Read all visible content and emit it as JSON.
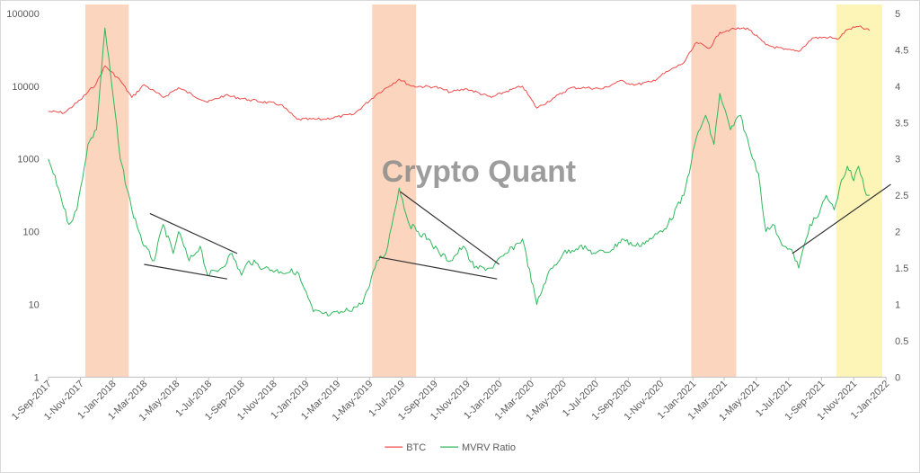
{
  "chart_data": {
    "type": "line",
    "watermark": "Crypto Quant",
    "x_tick_labels": [
      "1-Sep-2017",
      "1-Nov-2017",
      "1-Jan-2018",
      "1-Mar-2018",
      "1-May-2018",
      "1-Jul-2018",
      "1-Sep-2018",
      "1-Nov-2018",
      "1-Jan-2019",
      "1-Mar-2019",
      "1-May-2019",
      "1-Jul-2019",
      "1-Sep-2019",
      "1-Nov-2019",
      "1-Jan-2020",
      "1-Mar-2020",
      "1-May-2020",
      "1-Jul-2020",
      "1-Sep-2020",
      "1-Nov-2020",
      "1-Jan-2021",
      "1-Mar-2021",
      "1-May-2021",
      "1-Jul-2021",
      "1-Sep-2021",
      "1-Nov-2021",
      "1-Jan-2022"
    ],
    "y_left": {
      "scale": "log",
      "ticks": [
        "1",
        "10",
        "100",
        "1000",
        "10000",
        "100000"
      ],
      "range": [
        1,
        100000
      ]
    },
    "y_right": {
      "scale": "linear",
      "ticks": [
        "0",
        "0.5",
        "1",
        "1.5",
        "2",
        "2.5",
        "3",
        "3.5",
        "4",
        "4.5",
        "5"
      ],
      "range": [
        0,
        5
      ]
    },
    "legend_position": "bottom",
    "grid": false,
    "colors": {
      "btc": "#f04b4b",
      "mvrv": "#2eb85c",
      "shade_orange": "#fbd5bd",
      "shade_yellow": "#fdf5b8",
      "trendline": "#333333"
    },
    "series": [
      {
        "name": "BTC",
        "axis": "left",
        "x": [
          "2017-09-01",
          "2017-10-01",
          "2017-11-01",
          "2017-12-01",
          "2017-12-17",
          "2018-01-15",
          "2018-02-06",
          "2018-03-01",
          "2018-04-06",
          "2018-05-05",
          "2018-06-29",
          "2018-08-01",
          "2018-09-15",
          "2018-11-14",
          "2018-12-15",
          "2019-02-01",
          "2019-04-01",
          "2019-05-15",
          "2019-06-26",
          "2019-07-20",
          "2019-09-01",
          "2019-10-01",
          "2019-11-01",
          "2019-12-17",
          "2020-01-15",
          "2020-02-14",
          "2020-03-12",
          "2020-04-15",
          "2020-05-15",
          "2020-06-15",
          "2020-07-15",
          "2020-08-15",
          "2020-09-15",
          "2020-10-15",
          "2020-11-15",
          "2020-12-15",
          "2021-01-08",
          "2021-02-01",
          "2021-02-21",
          "2021-03-13",
          "2021-04-14",
          "2021-05-19",
          "2021-06-22",
          "2021-07-20",
          "2021-08-15",
          "2021-09-15",
          "2021-10-01",
          "2021-10-20",
          "2021-11-10",
          "2021-12-01"
        ],
        "values": [
          4500,
          4300,
          6500,
          11000,
          19000,
          12000,
          7000,
          10500,
          7000,
          9500,
          6000,
          7500,
          6500,
          5600,
          3500,
          3500,
          4100,
          7800,
          12500,
          10000,
          9800,
          8300,
          9200,
          7000,
          8500,
          10000,
          5000,
          7000,
          9500,
          9500,
          9200,
          11800,
          10500,
          11500,
          16000,
          21000,
          40000,
          33000,
          55000,
          60000,
          63000,
          37000,
          32000,
          30000,
          46000,
          47000,
          44000,
          60000,
          66000,
          58000
        ]
      },
      {
        "name": "MVRV Ratio",
        "axis": "right",
        "x": [
          "2017-09-01",
          "2017-09-20",
          "2017-10-10",
          "2017-10-25",
          "2017-11-15",
          "2017-12-01",
          "2017-12-17",
          "2018-01-01",
          "2018-01-15",
          "2018-02-06",
          "2018-03-01",
          "2018-03-20",
          "2018-04-06",
          "2018-04-25",
          "2018-05-05",
          "2018-05-25",
          "2018-06-15",
          "2018-06-29",
          "2018-07-25",
          "2018-08-14",
          "2018-09-01",
          "2018-09-15",
          "2018-10-15",
          "2018-11-14",
          "2018-12-15",
          "2019-01-15",
          "2019-02-15",
          "2019-03-15",
          "2019-04-15",
          "2019-05-01",
          "2019-05-15",
          "2019-06-01",
          "2019-06-26",
          "2019-07-15",
          "2019-08-01",
          "2019-08-20",
          "2019-09-10",
          "2019-10-01",
          "2019-10-25",
          "2019-11-15",
          "2019-12-17",
          "2020-01-15",
          "2020-02-14",
          "2020-03-12",
          "2020-04-01",
          "2020-05-01",
          "2020-06-01",
          "2020-07-01",
          "2020-08-01",
          "2020-08-20",
          "2020-09-15",
          "2020-10-15",
          "2020-11-15",
          "2020-12-15",
          "2021-01-08",
          "2021-01-25",
          "2021-02-10",
          "2021-02-21",
          "2021-03-13",
          "2021-04-01",
          "2021-04-20",
          "2021-05-05",
          "2021-05-19",
          "2021-06-01",
          "2021-06-22",
          "2021-07-10",
          "2021-07-20",
          "2021-08-10",
          "2021-08-25",
          "2021-09-10",
          "2021-09-25",
          "2021-10-05",
          "2021-10-20",
          "2021-11-01",
          "2021-11-10",
          "2021-11-25",
          "2021-12-01"
        ],
        "values": [
          3.0,
          2.6,
          2.1,
          2.3,
          3.2,
          3.4,
          4.8,
          3.9,
          3.0,
          2.3,
          1.8,
          1.6,
          2.1,
          1.7,
          2.0,
          1.6,
          1.8,
          1.4,
          1.5,
          1.7,
          1.4,
          1.6,
          1.5,
          1.45,
          1.45,
          0.9,
          0.85,
          0.9,
          1.0,
          1.25,
          1.6,
          1.7,
          2.6,
          2.1,
          2.0,
          1.9,
          1.7,
          1.6,
          1.8,
          1.5,
          1.5,
          1.7,
          1.9,
          1.0,
          1.4,
          1.7,
          1.8,
          1.7,
          1.75,
          1.9,
          1.8,
          1.9,
          2.1,
          2.5,
          3.3,
          3.6,
          3.2,
          3.9,
          3.4,
          3.6,
          3.1,
          2.8,
          2.0,
          2.1,
          1.8,
          1.7,
          1.5,
          2.1,
          2.2,
          2.5,
          2.3,
          2.6,
          2.9,
          2.7,
          2.9,
          2.5,
          2.5
        ]
      }
    ],
    "shaded_periods": [
      {
        "color": "orange",
        "from": "2017-11-10",
        "to": "2018-01-31"
      },
      {
        "color": "orange",
        "from": "2019-05-06",
        "to": "2019-07-28"
      },
      {
        "color": "orange",
        "from": "2020-12-29",
        "to": "2021-03-24"
      },
      {
        "color": "yellow",
        "from": "2021-09-29",
        "to": "2021-12-25"
      }
    ],
    "trendlines": [
      {
        "axis": "right",
        "from": [
          "2018-03-12",
          2.25
        ],
        "to": [
          "2018-08-24",
          1.7
        ]
      },
      {
        "axis": "right",
        "from": [
          "2018-03-01",
          1.55
        ],
        "to": [
          "2018-08-05",
          1.35
        ]
      },
      {
        "axis": "right",
        "from": [
          "2019-06-28",
          2.55
        ],
        "to": [
          "2020-01-01",
          1.55
        ]
      },
      {
        "axis": "right",
        "from": [
          "2019-05-19",
          1.65
        ],
        "to": [
          "2019-12-28",
          1.35
        ]
      },
      {
        "axis": "right",
        "from": [
          "2021-07-08",
          1.7
        ],
        "to": [
          "2022-01-10",
          2.65
        ]
      }
    ]
  }
}
